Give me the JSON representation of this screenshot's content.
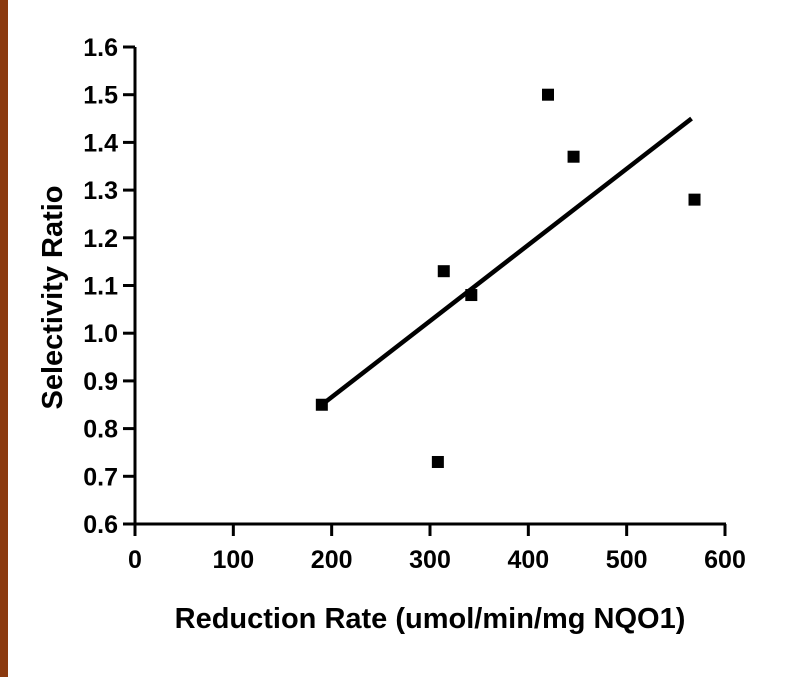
{
  "colors": {
    "left_bar": "#8b3a0f",
    "ink": "#000000"
  },
  "chart_data": {
    "type": "scatter",
    "xlabel": "Reduction Rate (umol/min/mg NQO1)",
    "ylabel": "Selectivity Ratio",
    "xlim": [
      0,
      600
    ],
    "ylim": [
      0.6,
      1.6
    ],
    "x_ticks": [
      0,
      100,
      200,
      300,
      400,
      500,
      600
    ],
    "y_ticks": [
      0.6,
      0.7,
      0.8,
      0.9,
      1.0,
      1.1,
      1.2,
      1.3,
      1.4,
      1.5,
      1.6
    ],
    "x_tick_labels": [
      "0",
      "100",
      "200",
      "300",
      "400",
      "500",
      "600"
    ],
    "y_tick_labels": [
      "0.6",
      "0.7",
      "0.8",
      "0.9",
      "1.0",
      "1.1",
      "1.2",
      "1.3",
      "1.4",
      "1.5",
      "1.6"
    ],
    "points": [
      {
        "x": 190,
        "y": 0.85
      },
      {
        "x": 308,
        "y": 0.73
      },
      {
        "x": 314,
        "y": 1.13
      },
      {
        "x": 342,
        "y": 1.08
      },
      {
        "x": 420,
        "y": 1.5
      },
      {
        "x": 446,
        "y": 1.37
      },
      {
        "x": 569,
        "y": 1.28
      }
    ],
    "trendline": {
      "x": [
        190,
        566
      ],
      "y": [
        0.85,
        1.45
      ]
    },
    "grid": false,
    "legend": "none"
  }
}
